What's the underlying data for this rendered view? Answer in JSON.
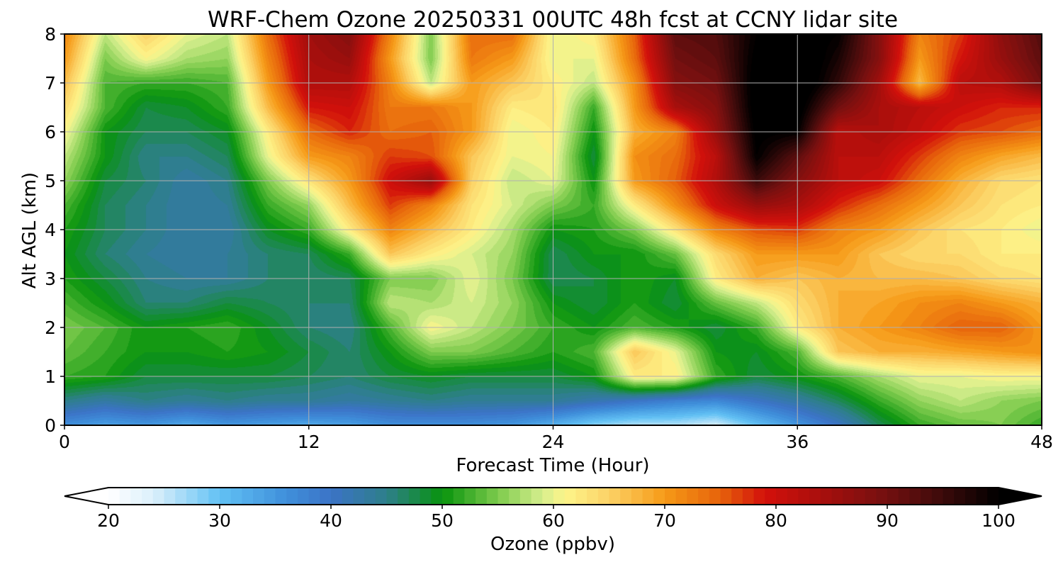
{
  "chart_data": {
    "type": "heatmap",
    "title": "WRF-Chem Ozone  20250331 00UTC 48h fcst at CCNY lidar site",
    "xlabel": "Forecast Time (Hour)",
    "ylabel": "Alt AGL (km)",
    "xlim": [
      0,
      48
    ],
    "ylim": [
      0,
      8
    ],
    "xticks": [
      0,
      12,
      24,
      36,
      48
    ],
    "yticks": [
      0,
      1,
      2,
      3,
      4,
      5,
      6,
      7,
      8
    ],
    "grid": true,
    "x_hours": [
      0,
      2,
      4,
      6,
      8,
      10,
      12,
      14,
      16,
      18,
      20,
      22,
      24,
      26,
      28,
      30,
      32,
      34,
      36,
      38,
      40,
      42,
      44,
      46,
      48
    ],
    "y_km": [
      0,
      0.5,
      1,
      1.5,
      2,
      2.5,
      3,
      3.5,
      4,
      4.5,
      5,
      5.5,
      6,
      6.5,
      7,
      7.5,
      8
    ],
    "z_ppbv": [
      [
        36,
        34,
        35,
        33,
        35,
        34,
        33,
        34,
        36,
        36,
        36,
        35,
        32,
        28,
        26,
        26,
        24,
        30,
        35,
        40,
        47,
        52,
        54,
        55,
        52
      ],
      [
        45,
        43,
        45,
        44,
        45,
        44,
        44,
        43,
        44,
        45,
        44,
        44,
        44,
        42,
        40,
        38,
        37,
        40,
        43,
        47,
        52,
        56,
        58,
        56,
        55
      ],
      [
        52,
        51,
        48,
        48,
        48,
        48,
        47,
        46,
        48,
        49,
        48,
        48,
        48,
        50,
        62,
        62,
        52,
        48,
        50,
        53,
        57,
        60,
        60,
        61,
        61
      ],
      [
        54,
        52,
        50,
        50,
        51,
        50,
        48,
        46,
        50,
        55,
        55,
        53,
        51,
        53,
        66,
        60,
        50,
        49,
        53,
        66,
        68,
        68,
        69,
        70,
        71
      ],
      [
        55,
        53,
        50,
        51,
        52,
        49,
        46,
        45,
        53,
        61,
        58,
        55,
        52,
        50,
        53,
        51,
        48,
        52,
        62,
        68,
        70,
        72,
        75,
        75,
        70
      ],
      [
        53,
        50,
        46,
        46,
        48,
        47,
        46,
        46,
        58,
        57,
        59,
        56,
        50,
        48,
        51,
        48,
        54,
        58,
        64,
        68,
        69,
        71,
        72,
        70,
        68
      ],
      [
        51,
        48,
        45,
        44,
        44,
        46,
        46,
        47,
        55,
        55,
        60,
        55,
        47,
        48,
        51,
        49,
        62,
        68,
        66,
        68,
        67,
        67,
        66,
        64,
        63
      ],
      [
        50,
        46,
        44,
        43,
        44,
        46,
        47,
        52,
        66,
        62,
        59,
        56,
        47,
        50,
        50,
        54,
        64,
        70,
        70,
        70,
        66,
        64,
        64,
        62,
        62
      ],
      [
        51,
        47,
        45,
        43,
        43,
        49,
        52,
        62,
        72,
        67,
        62,
        57,
        50,
        51,
        55,
        63,
        72,
        76,
        77,
        72,
        70,
        66,
        63,
        62,
        60
      ],
      [
        53,
        47,
        45,
        43,
        44,
        52,
        56,
        67,
        77,
        72,
        63,
        59,
        55,
        52,
        62,
        71,
        80,
        86,
        84,
        78,
        74,
        70,
        66,
        63,
        62
      ],
      [
        56,
        48,
        46,
        43,
        45,
        55,
        63,
        70,
        80,
        86,
        65,
        58,
        60,
        50,
        70,
        75,
        83,
        95,
        88,
        82,
        80,
        74,
        68,
        64,
        63
      ],
      [
        58,
        50,
        45,
        45,
        47,
        60,
        70,
        72,
        77,
        76,
        66,
        60,
        61,
        48,
        71,
        74,
        82,
        100,
        92,
        82,
        82,
        77,
        72,
        69,
        67
      ],
      [
        61,
        50,
        47,
        47,
        49,
        62,
        74,
        78,
        74,
        75,
        70,
        60,
        62,
        50,
        68,
        72,
        86,
        101,
        100,
        82,
        84,
        81,
        77,
        76,
        74
      ],
      [
        64,
        53,
        48,
        49,
        52,
        67,
        79,
        80,
        73,
        73,
        70,
        62,
        63,
        52,
        70,
        84,
        88,
        102,
        102,
        90,
        84,
        82,
        80,
        78,
        78
      ],
      [
        67,
        53,
        52,
        52,
        53,
        70,
        83,
        83,
        72,
        58,
        70,
        66,
        62,
        58,
        71,
        88,
        90,
        102,
        104,
        96,
        85,
        67,
        82,
        83,
        90
      ],
      [
        70,
        55,
        61,
        57,
        56,
        72,
        84,
        86,
        70,
        55,
        73,
        70,
        60,
        60,
        74,
        90,
        92,
        101,
        104,
        98,
        88,
        70,
        79,
        86,
        92
      ],
      [
        72,
        58,
        65,
        60,
        58,
        74,
        85,
        88,
        72,
        55,
        74,
        74,
        60,
        62,
        75,
        92,
        93,
        100,
        102,
        100,
        88,
        72,
        77,
        87,
        93
      ]
    ],
    "colorbar": {
      "label": "Ozone  (ppbv)",
      "min": 20,
      "max": 100,
      "ticks": [
        20,
        30,
        40,
        50,
        60,
        70,
        80,
        90,
        100
      ],
      "extend": "both",
      "stops": [
        [
          20,
          "#ffffff"
        ],
        [
          24,
          "#dcf0fb"
        ],
        [
          30,
          "#62c1f4"
        ],
        [
          36,
          "#3f8fdb"
        ],
        [
          40,
          "#3b73c6"
        ],
        [
          45,
          "#2e7f8a"
        ],
        [
          50,
          "#08930d"
        ],
        [
          55,
          "#7dcb4c"
        ],
        [
          59,
          "#d6ee8e"
        ],
        [
          61,
          "#fdf58a"
        ],
        [
          65,
          "#fcd166"
        ],
        [
          70,
          "#f69a17"
        ],
        [
          75,
          "#e6620b"
        ],
        [
          79,
          "#d3100b"
        ],
        [
          85,
          "#a00f0d"
        ],
        [
          90,
          "#721010"
        ],
        [
          95,
          "#3b0a0a"
        ],
        [
          100,
          "#000000"
        ]
      ]
    }
  }
}
